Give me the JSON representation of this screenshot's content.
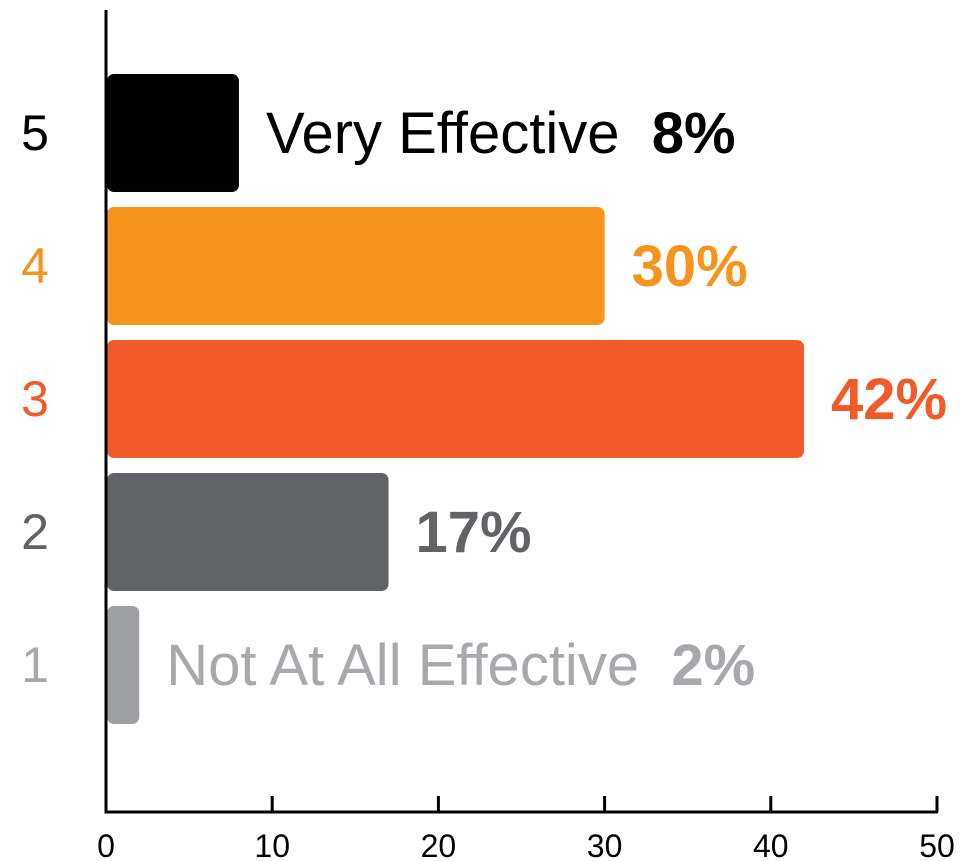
{
  "chart_data": {
    "type": "bar",
    "orientation": "horizontal",
    "categories": [
      "5",
      "4",
      "3",
      "2",
      "1"
    ],
    "values": [
      8,
      30,
      42,
      17,
      2
    ],
    "value_labels": [
      "8%",
      "30%",
      "42%",
      "17%",
      "2%"
    ],
    "descriptions": [
      "Very Effective",
      "",
      "",
      "",
      "Not At All Effective"
    ],
    "colors": [
      "#000000",
      "#F7941E",
      "#F15A29",
      "#626366",
      "#9D9FA2"
    ],
    "desc_colors": [
      "#000000",
      "#F7941E",
      "#F15A29",
      "#626366",
      "#A7A9AC"
    ],
    "xlim": [
      0,
      50
    ],
    "xticks": [
      "0",
      "10",
      "20",
      "30",
      "40",
      "50"
    ],
    "grid": false,
    "legend": "none",
    "title": "",
    "xlabel": "",
    "ylabel": ""
  }
}
